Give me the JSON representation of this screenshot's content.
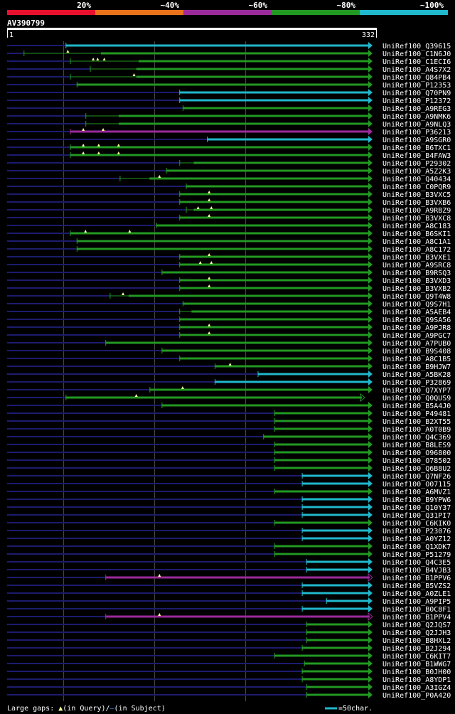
{
  "colors": {
    "background": "#000000",
    "text": "#ffffff",
    "band_20": "#e8112d",
    "band_40": "#e8731a",
    "band_60": "#9b2a9b",
    "band_80": "#229922",
    "band_100": "#20b8cc",
    "query_line": "#1c1c6e",
    "guide": "#444444",
    "gap_marker": "#ffff99"
  },
  "identity_scale": {
    "labels": [
      "20%",
      "~40%",
      "~60%",
      "~80%",
      "~100%"
    ],
    "band_colors": [
      "#e8112d",
      "#e8731a",
      "#9b2a9b",
      "#229922",
      "#20b8cc"
    ]
  },
  "query": {
    "name": "AV390799",
    "start": "1",
    "end": "332",
    "length": 332
  },
  "hits": [
    {
      "name": "UniRef100_Q39615",
      "start": 54,
      "end": 332,
      "identity": "100",
      "seg_start": 54,
      "gaps": [],
      "open_end": false
    },
    {
      "name": "UniRef100_C1N6J0",
      "start": 16,
      "end": 332,
      "identity": "80",
      "seg_start": 86,
      "gaps": [
        56
      ],
      "open_end": false
    },
    {
      "name": "UniRef100_C1ECI6",
      "start": 58,
      "end": 332,
      "identity": "80",
      "seg_start": 120,
      "gaps": [
        79,
        83,
        89
      ],
      "open_end": false
    },
    {
      "name": "UniRef100_A4S7X2",
      "start": 76,
      "end": 332,
      "identity": "80",
      "seg_start": 118,
      "gaps": [],
      "open_end": false
    },
    {
      "name": "UniRef100_Q84PB4",
      "start": 58,
      "end": 332,
      "identity": "80",
      "seg_start": 118,
      "gaps": [
        116
      ],
      "open_end": false
    },
    {
      "name": "UniRef100_P12353",
      "start": 64,
      "end": 332,
      "identity": "80",
      "seg_start": 64,
      "gaps": [],
      "open_end": false
    },
    {
      "name": "UniRef100_Q70PN9",
      "start": 157,
      "end": 332,
      "identity": "100",
      "seg_start": 157,
      "gaps": [],
      "open_end": false
    },
    {
      "name": "UniRef100_P12372",
      "start": 157,
      "end": 332,
      "identity": "100",
      "seg_start": 157,
      "gaps": [],
      "open_end": false
    },
    {
      "name": "UniRef100_A9REG3",
      "start": 160,
      "end": 332,
      "identity": "80",
      "seg_start": 160,
      "gaps": [],
      "open_end": false
    },
    {
      "name": "UniRef100_A9NMK6",
      "start": 72,
      "end": 332,
      "identity": "80",
      "seg_start": 102,
      "gaps": [],
      "open_end": false
    },
    {
      "name": "UniRef100_A9NLQ3",
      "start": 72,
      "end": 332,
      "identity": "80",
      "seg_start": 102,
      "gaps": [],
      "open_end": false
    },
    {
      "name": "UniRef100_P36213",
      "start": 58,
      "end": 332,
      "identity": "60",
      "seg_start": 58,
      "gaps": [
        70,
        88
      ],
      "open_end": false
    },
    {
      "name": "UniRef100_A9SGR0",
      "start": 182,
      "end": 332,
      "identity": "100",
      "seg_start": 182,
      "gaps": [],
      "open_end": false
    },
    {
      "name": "UniRef100_B6TXC1",
      "start": 58,
      "end": 332,
      "identity": "80",
      "seg_start": 58,
      "gaps": [
        70,
        84,
        102
      ],
      "open_end": false
    },
    {
      "name": "UniRef100_B4FAW3",
      "start": 58,
      "end": 332,
      "identity": "80",
      "seg_start": 58,
      "gaps": [
        70,
        84,
        102
      ],
      "open_end": false
    },
    {
      "name": "UniRef100_P29302",
      "start": 157,
      "end": 332,
      "identity": "80",
      "seg_start": 170,
      "gaps": [],
      "open_end": false
    },
    {
      "name": "UniRef100_A5Z2K3",
      "start": 145,
      "end": 332,
      "identity": "80",
      "seg_start": 145,
      "gaps": [],
      "open_end": false
    },
    {
      "name": "UniRef100_Q40434",
      "start": 103,
      "end": 332,
      "identity": "80",
      "seg_start": 130,
      "gaps": [
        139
      ],
      "open_end": false
    },
    {
      "name": "UniRef100_C0PQR9",
      "start": 163,
      "end": 332,
      "identity": "80",
      "seg_start": 163,
      "gaps": [],
      "open_end": false
    },
    {
      "name": "UniRef100_B3VXC5",
      "start": 157,
      "end": 332,
      "identity": "80",
      "seg_start": 157,
      "gaps": [
        184
      ],
      "open_end": false
    },
    {
      "name": "UniRef100_B3VXB6",
      "start": 157,
      "end": 332,
      "identity": "80",
      "seg_start": 157,
      "gaps": [
        184
      ],
      "open_end": false
    },
    {
      "name": "UniRef100_A9RBZ9",
      "start": 163,
      "end": 332,
      "identity": "80",
      "seg_start": 170,
      "gaps": [
        174,
        186
      ],
      "open_end": false
    },
    {
      "name": "UniRef100_B3VXC8",
      "start": 157,
      "end": 332,
      "identity": "80",
      "seg_start": 157,
      "gaps": [
        184
      ],
      "open_end": false
    },
    {
      "name": "UniRef100_A8C183",
      "start": 136,
      "end": 332,
      "identity": "80",
      "seg_start": 136,
      "gaps": [],
      "open_end": false
    },
    {
      "name": "UniRef100_B6SKI1",
      "start": 58,
      "end": 332,
      "identity": "80",
      "seg_start": 58,
      "gaps": [
        72,
        112
      ],
      "open_end": false
    },
    {
      "name": "UniRef100_A8C1A1",
      "start": 64,
      "end": 332,
      "identity": "80",
      "seg_start": 64,
      "gaps": [],
      "open_end": false
    },
    {
      "name": "UniRef100_A8C172",
      "start": 64,
      "end": 332,
      "identity": "80",
      "seg_start": 64,
      "gaps": [],
      "open_end": false
    },
    {
      "name": "UniRef100_B3VXE1",
      "start": 157,
      "end": 332,
      "identity": "80",
      "seg_start": 157,
      "gaps": [
        184
      ],
      "open_end": false
    },
    {
      "name": "UniRef100_A9SRC8",
      "start": 157,
      "end": 332,
      "identity": "80",
      "seg_start": 157,
      "gaps": [
        176,
        186
      ],
      "open_end": false
    },
    {
      "name": "UniRef100_B9RSQ3",
      "start": 141,
      "end": 332,
      "identity": "80",
      "seg_start": 141,
      "gaps": [],
      "open_end": false
    },
    {
      "name": "UniRef100_B3VXD3",
      "start": 157,
      "end": 332,
      "identity": "80",
      "seg_start": 157,
      "gaps": [
        184
      ],
      "open_end": false
    },
    {
      "name": "UniRef100_B3VXB2",
      "start": 157,
      "end": 332,
      "identity": "80",
      "seg_start": 157,
      "gaps": [
        184
      ],
      "open_end": false
    },
    {
      "name": "UniRef100_Q9T4W8",
      "start": 94,
      "end": 332,
      "identity": "80",
      "seg_start": 111,
      "gaps": [
        106
      ],
      "open_end": false
    },
    {
      "name": "UniRef100_Q9S7H1",
      "start": 160,
      "end": 332,
      "identity": "80",
      "seg_start": 160,
      "gaps": [],
      "open_end": false
    },
    {
      "name": "UniRef100_A5AEB4",
      "start": 157,
      "end": 332,
      "identity": "80",
      "seg_start": 168,
      "gaps": [],
      "open_end": false
    },
    {
      "name": "UniRef100_Q9SA56",
      "start": 157,
      "end": 332,
      "identity": "80",
      "seg_start": 157,
      "gaps": [],
      "open_end": false
    },
    {
      "name": "UniRef100_A9PJR8",
      "start": 157,
      "end": 332,
      "identity": "80",
      "seg_start": 157,
      "gaps": [
        184
      ],
      "open_end": false
    },
    {
      "name": "UniRef100_A9PGC7",
      "start": 157,
      "end": 332,
      "identity": "80",
      "seg_start": 157,
      "gaps": [
        184
      ],
      "open_end": false
    },
    {
      "name": "UniRef100_A7PUB0",
      "start": 90,
      "end": 332,
      "identity": "80",
      "seg_start": 90,
      "gaps": [],
      "open_end": false
    },
    {
      "name": "UniRef100_B9S408",
      "start": 141,
      "end": 332,
      "identity": "80",
      "seg_start": 141,
      "gaps": [],
      "open_end": false
    },
    {
      "name": "UniRef100_A8C1B5",
      "start": 157,
      "end": 332,
      "identity": "80",
      "seg_start": 157,
      "gaps": [],
      "open_end": false
    },
    {
      "name": "UniRef100_B9HJW7",
      "start": 189,
      "end": 332,
      "identity": "80",
      "seg_start": 189,
      "gaps": [
        203
      ],
      "open_end": false
    },
    {
      "name": "UniRef100_A5BK28",
      "start": 228,
      "end": 332,
      "identity": "100",
      "seg_start": 228,
      "gaps": [],
      "open_end": false
    },
    {
      "name": "UniRef100_P32869",
      "start": 189,
      "end": 332,
      "identity": "100",
      "seg_start": 189,
      "gaps": [],
      "open_end": false
    },
    {
      "name": "UniRef100_Q7XYP7",
      "start": 130,
      "end": 332,
      "identity": "80",
      "seg_start": 130,
      "gaps": [
        160
      ],
      "open_end": false
    },
    {
      "name": "UniRef100_Q0QUS9",
      "start": 54,
      "end": 325,
      "identity": "80",
      "seg_start": 54,
      "gaps": [
        118
      ],
      "open_end": true
    },
    {
      "name": "UniRef100_B5A4J0",
      "start": 141,
      "end": 332,
      "identity": "80",
      "seg_start": 141,
      "gaps": [],
      "open_end": false
    },
    {
      "name": "UniRef100_P49481",
      "start": 243,
      "end": 332,
      "identity": "80",
      "seg_start": 243,
      "gaps": [],
      "open_end": false
    },
    {
      "name": "UniRef100_B2XT55",
      "start": 243,
      "end": 332,
      "identity": "80",
      "seg_start": 243,
      "gaps": [],
      "open_end": false
    },
    {
      "name": "UniRef100_A0T0B9",
      "start": 243,
      "end": 332,
      "identity": "80",
      "seg_start": 243,
      "gaps": [],
      "open_end": false
    },
    {
      "name": "UniRef100_Q4C369",
      "start": 233,
      "end": 332,
      "identity": "80",
      "seg_start": 233,
      "gaps": [],
      "open_end": false
    },
    {
      "name": "UniRef100_B8LES9",
      "start": 243,
      "end": 332,
      "identity": "80",
      "seg_start": 243,
      "gaps": [],
      "open_end": false
    },
    {
      "name": "UniRef100_O96800",
      "start": 243,
      "end": 332,
      "identity": "80",
      "seg_start": 243,
      "gaps": [],
      "open_end": false
    },
    {
      "name": "UniRef100_O78502",
      "start": 243,
      "end": 332,
      "identity": "80",
      "seg_start": 243,
      "gaps": [],
      "open_end": false
    },
    {
      "name": "UniRef100_Q6B8U2",
      "start": 243,
      "end": 332,
      "identity": "80",
      "seg_start": 243,
      "gaps": [],
      "open_end": false
    },
    {
      "name": "UniRef100_Q7NF26",
      "start": 268,
      "end": 332,
      "identity": "100",
      "seg_start": 268,
      "gaps": [],
      "open_end": false
    },
    {
      "name": "UniRef100_O07115",
      "start": 268,
      "end": 332,
      "identity": "100",
      "seg_start": 268,
      "gaps": [],
      "open_end": false
    },
    {
      "name": "UniRef100_A6MVZ1",
      "start": 243,
      "end": 332,
      "identity": "80",
      "seg_start": 243,
      "gaps": [],
      "open_end": false
    },
    {
      "name": "UniRef100_B9YPW6",
      "start": 268,
      "end": 332,
      "identity": "100",
      "seg_start": 268,
      "gaps": [],
      "open_end": false
    },
    {
      "name": "UniRef100_Q10Y37",
      "start": 268,
      "end": 332,
      "identity": "100",
      "seg_start": 268,
      "gaps": [],
      "open_end": false
    },
    {
      "name": "UniRef100_Q31PI7",
      "start": 268,
      "end": 332,
      "identity": "100",
      "seg_start": 268,
      "gaps": [],
      "open_end": false
    },
    {
      "name": "UniRef100_C6KIK0",
      "start": 243,
      "end": 332,
      "identity": "80",
      "seg_start": 243,
      "gaps": [],
      "open_end": false
    },
    {
      "name": "UniRef100_P23076",
      "start": 268,
      "end": 332,
      "identity": "100",
      "seg_start": 268,
      "gaps": [],
      "open_end": false
    },
    {
      "name": "UniRef100_A0YZ12",
      "start": 268,
      "end": 332,
      "identity": "100",
      "seg_start": 268,
      "gaps": [],
      "open_end": false
    },
    {
      "name": "UniRef100_Q1XDK7",
      "start": 243,
      "end": 332,
      "identity": "80",
      "seg_start": 243,
      "gaps": [],
      "open_end": false
    },
    {
      "name": "UniRef100_P51279",
      "start": 243,
      "end": 332,
      "identity": "80",
      "seg_start": 243,
      "gaps": [],
      "open_end": false
    },
    {
      "name": "UniRef100_Q4C3E5",
      "start": 272,
      "end": 332,
      "identity": "100",
      "seg_start": 272,
      "gaps": [],
      "open_end": false
    },
    {
      "name": "UniRef100_B4VJB3",
      "start": 272,
      "end": 332,
      "identity": "100",
      "seg_start": 272,
      "gaps": [],
      "open_end": false
    },
    {
      "name": "UniRef100_B1PPV6",
      "start": 90,
      "end": 332,
      "identity": "60",
      "seg_start": 90,
      "gaps": [
        139
      ],
      "open_end": true
    },
    {
      "name": "UniRef100_B5VZS2",
      "start": 268,
      "end": 332,
      "identity": "100",
      "seg_start": 268,
      "gaps": [],
      "open_end": false
    },
    {
      "name": "UniRef100_A0ZLE1",
      "start": 268,
      "end": 332,
      "identity": "100",
      "seg_start": 268,
      "gaps": [],
      "open_end": false
    },
    {
      "name": "UniRef100_A9PIP5",
      "start": 290,
      "end": 332,
      "identity": "100",
      "seg_start": 290,
      "gaps": [],
      "open_end": false
    },
    {
      "name": "UniRef100_B0C8F1",
      "start": 268,
      "end": 332,
      "identity": "100",
      "seg_start": 268,
      "gaps": [],
      "open_end": false
    },
    {
      "name": "UniRef100_B1PPV4",
      "start": 90,
      "end": 332,
      "identity": "60",
      "seg_start": 90,
      "gaps": [
        139
      ],
      "open_end": true
    },
    {
      "name": "UniRef100_Q2JQS7",
      "start": 272,
      "end": 332,
      "identity": "80",
      "seg_start": 272,
      "gaps": [],
      "open_end": false
    },
    {
      "name": "UniRef100_Q2JJH3",
      "start": 272,
      "end": 332,
      "identity": "80",
      "seg_start": 272,
      "gaps": [],
      "open_end": false
    },
    {
      "name": "UniRef100_B8HXL2",
      "start": 272,
      "end": 332,
      "identity": "80",
      "seg_start": 272,
      "gaps": [],
      "open_end": false
    },
    {
      "name": "UniRef100_B2J294",
      "start": 268,
      "end": 332,
      "identity": "80",
      "seg_start": 268,
      "gaps": [],
      "open_end": false
    },
    {
      "name": "UniRef100_C6KIT7",
      "start": 243,
      "end": 332,
      "identity": "80",
      "seg_start": 243,
      "gaps": [],
      "open_end": false
    },
    {
      "name": "UniRef100_B1WWG7",
      "start": 270,
      "end": 332,
      "identity": "80",
      "seg_start": 270,
      "gaps": [],
      "open_end": false
    },
    {
      "name": "UniRef100_B0JH00",
      "start": 268,
      "end": 332,
      "identity": "80",
      "seg_start": 268,
      "gaps": [],
      "open_end": false
    },
    {
      "name": "UniRef100_A8YDP1",
      "start": 268,
      "end": 332,
      "identity": "80",
      "seg_start": 268,
      "gaps": [],
      "open_end": false
    },
    {
      "name": "UniRef100_A3IGZ4",
      "start": 272,
      "end": 332,
      "identity": "80",
      "seg_start": 272,
      "gaps": [],
      "open_end": false
    },
    {
      "name": "UniRef100_P0A420",
      "start": 272,
      "end": 332,
      "identity": "80",
      "seg_start": 272,
      "gaps": [],
      "open_end": false
    }
  ],
  "footer": {
    "legend_prefix": "Large gaps: ",
    "legend_query": "(in Query)/",
    "legend_subject": "(in Subject)",
    "scale_label": "=50char."
  }
}
